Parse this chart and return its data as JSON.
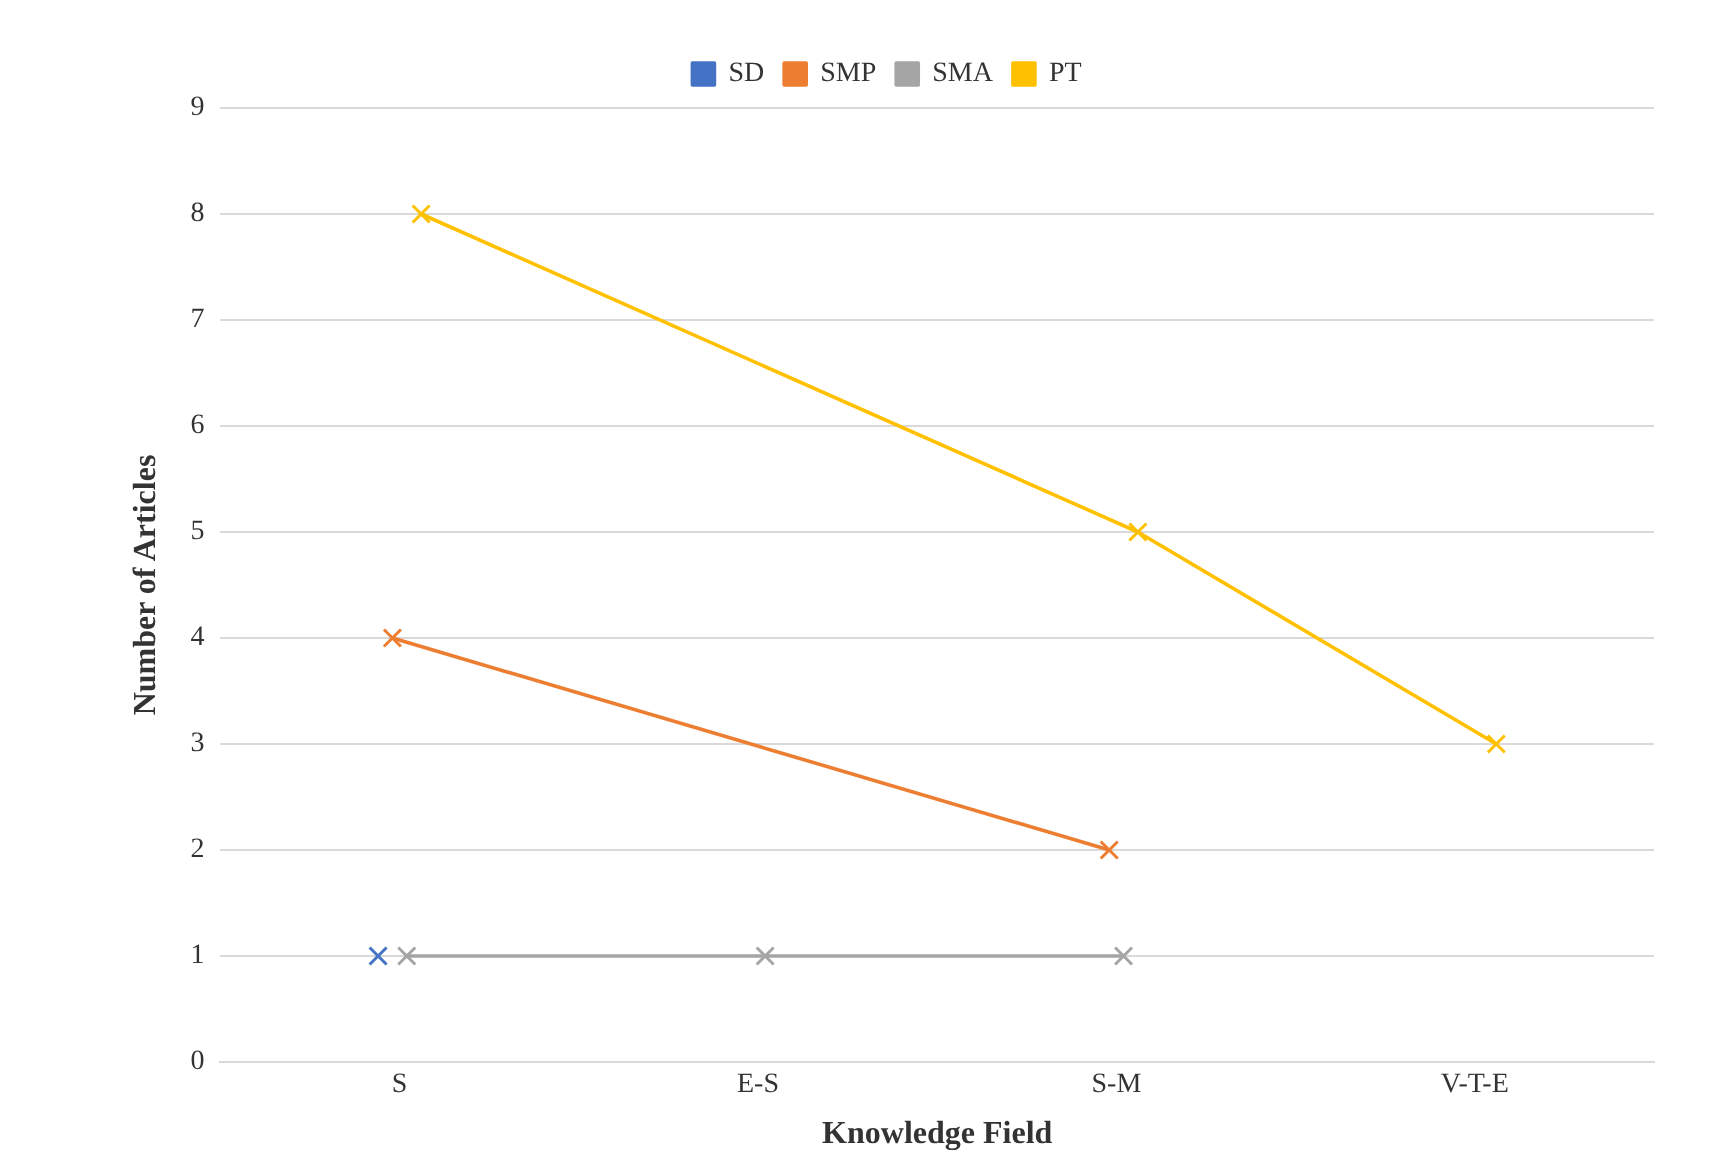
{
  "chart_data": {
    "type": "line",
    "xlabel": "Knowledge Field",
    "ylabel": "Number of Articles",
    "categories": [
      "S",
      "E-S",
      "S-M",
      "V-T-E"
    ],
    "series": [
      {
        "name": "SD",
        "color": "#4472c4",
        "values": [
          1,
          null,
          null,
          null
        ]
      },
      {
        "name": "SMP",
        "color": "#ed7d31",
        "values": [
          4,
          null,
          2,
          null
        ]
      },
      {
        "name": "SMA",
        "color": "#a5a5a5",
        "values": [
          1,
          1,
          1,
          null
        ]
      },
      {
        "name": "PT",
        "color": "#ffc000",
        "values": [
          8,
          null,
          5,
          3
        ]
      }
    ],
    "ylim": [
      0,
      9
    ],
    "yticks": [
      0,
      1,
      2,
      3,
      4,
      5,
      6,
      7,
      8,
      9
    ],
    "grid": "y",
    "legend": "top",
    "marker": "cross",
    "line_style": "solid"
  }
}
